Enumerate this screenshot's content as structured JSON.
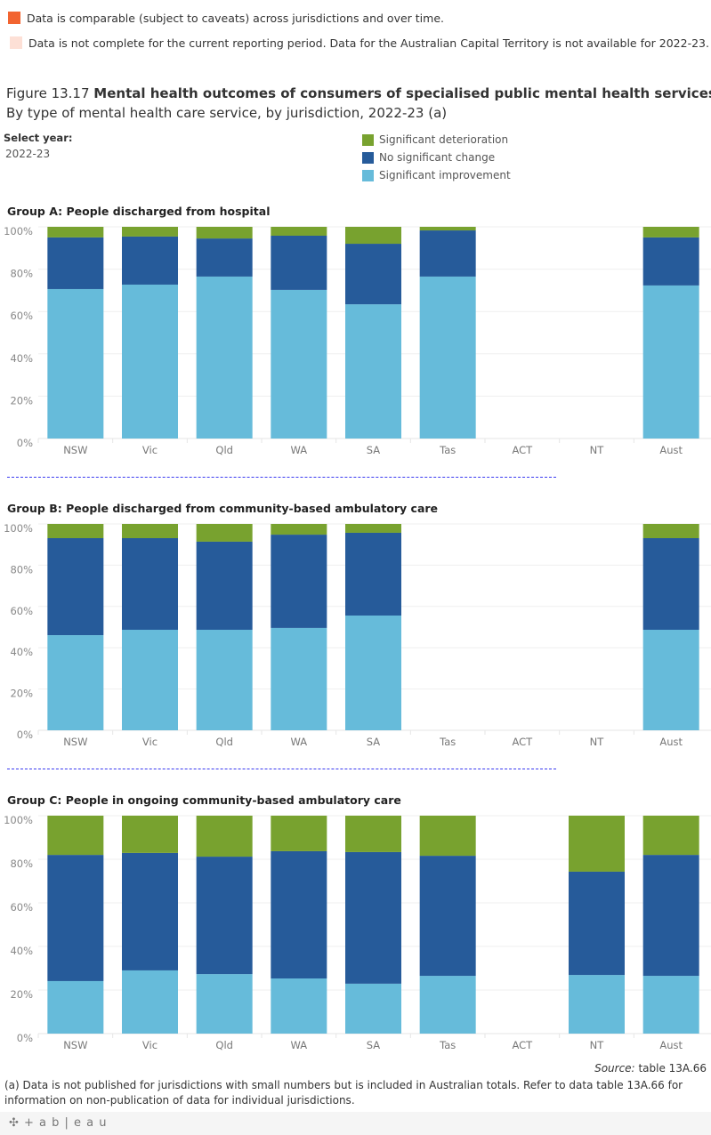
{
  "notes": [
    {
      "text": "Data is comparable (subject to caveats) across jurisdictions and over time.",
      "color": "#f26430"
    },
    {
      "text": "Data is not complete for the current reporting period. Data for the Australian Capital Territory is not available for 2022-23.",
      "color": "#fde0d6"
    }
  ],
  "figure": {
    "number": "Figure 13.17",
    "title": "Mental health outcomes of consumers of specialised public mental health services",
    "subtitle": "By type of mental health care service, by jurisdiction, 2022-23 (a)"
  },
  "filter": {
    "label": "Select year:",
    "value": "2022-23"
  },
  "legend": [
    {
      "label": "Significant deterioration",
      "color": "#78a22f"
    },
    {
      "label": "No significant change",
      "color": "#265b9a"
    },
    {
      "label": "Significant improvement",
      "color": "#66bbda"
    }
  ],
  "chart_data": [
    {
      "type": "bar",
      "stacked": true,
      "title": "Group A: People discharged from hospital",
      "categories": [
        "NSW",
        "Vic",
        "Qld",
        "WA",
        "SA",
        "Tas",
        "ACT",
        "NT",
        "Aust"
      ],
      "yticks": [
        "0%",
        "20%",
        "40%",
        "60%",
        "80%",
        "100%"
      ],
      "ylim": [
        0,
        100
      ],
      "grid": true,
      "series": [
        {
          "name": "Significant improvement",
          "values": [
            70.6,
            72.7,
            76.5,
            70.2,
            63.4,
            76.5,
            null,
            null,
            72.3
          ]
        },
        {
          "name": "No significant change",
          "values": [
            24.4,
            22.7,
            18.0,
            25.6,
            28.6,
            21.8,
            null,
            null,
            22.7
          ]
        },
        {
          "name": "Significant deterioration",
          "values": [
            5.0,
            4.6,
            5.5,
            4.2,
            8.0,
            1.7,
            null,
            null,
            5.0
          ]
        }
      ]
    },
    {
      "type": "bar",
      "stacked": true,
      "title": "Group B: People discharged from community-based ambulatory care",
      "categories": [
        "NSW",
        "Vic",
        "Qld",
        "WA",
        "SA",
        "Tas",
        "ACT",
        "NT",
        "Aust"
      ],
      "yticks": [
        "0%",
        "20%",
        "40%",
        "60%",
        "80%",
        "100%"
      ],
      "ylim": [
        0,
        100
      ],
      "grid": true,
      "series": [
        {
          "name": "Significant improvement",
          "values": [
            46.1,
            48.7,
            48.7,
            49.6,
            55.6,
            null,
            null,
            null,
            48.7
          ]
        },
        {
          "name": "No significant change",
          "values": [
            47.0,
            44.4,
            42.7,
            45.2,
            40.1,
            null,
            null,
            null,
            44.4
          ]
        },
        {
          "name": "Significant deterioration",
          "values": [
            6.9,
            6.9,
            8.6,
            5.2,
            4.3,
            null,
            null,
            null,
            6.9
          ]
        }
      ]
    },
    {
      "type": "bar",
      "stacked": true,
      "title": "Group C: People in ongoing community-based ambulatory care",
      "categories": [
        "NSW",
        "Vic",
        "Qld",
        "WA",
        "SA",
        "Tas",
        "ACT",
        "NT",
        "Aust"
      ],
      "yticks": [
        "0%",
        "20%",
        "40%",
        "60%",
        "80%",
        "100%"
      ],
      "ylim": [
        0,
        100
      ],
      "grid": true,
      "series": [
        {
          "name": "Significant improvement",
          "values": [
            24.1,
            29.0,
            27.3,
            25.3,
            22.9,
            26.5,
            null,
            26.9,
            26.5
          ]
        },
        {
          "name": "No significant change",
          "values": [
            57.9,
            53.9,
            53.9,
            58.4,
            60.4,
            55.1,
            null,
            47.4,
            55.5
          ]
        },
        {
          "name": "Significant deterioration",
          "values": [
            18.0,
            17.1,
            18.8,
            16.3,
            16.7,
            18.4,
            null,
            25.7,
            18.0
          ]
        }
      ]
    }
  ],
  "source": {
    "label": "Source:",
    "text": "table 13A.66"
  },
  "footnote": "(a) Data is not published for jurisdictions with small numbers but is included in Australian totals. Refer to data table 13A.66 for information on non-publication of data for individual jurisdictions.",
  "branding": "+ a b | e a u"
}
